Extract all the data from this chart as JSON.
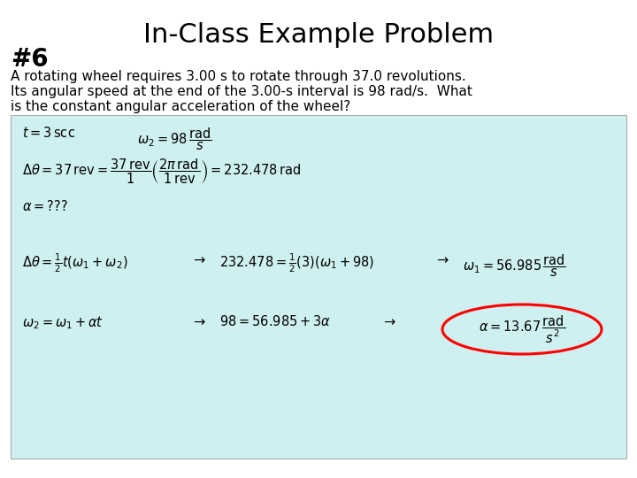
{
  "title": "In-Class Example Problem",
  "number": "#6",
  "problem_text_line1": "A rotating wheel requires 3.00 s to rotate through 37.0 revolutions.",
  "problem_text_line2": "Its angular speed at the end of the 3.00-s interval is 98 rad/s.  What",
  "problem_text_line3": "is the constant angular acceleration of the wheel?",
  "box_bg": "#cff0f0",
  "box_edge": "#aaaaaa",
  "title_fontsize": 22,
  "number_fontsize": 20,
  "problem_fontsize": 11,
  "math_fontsize": 10.5,
  "background_color": "#ffffff"
}
